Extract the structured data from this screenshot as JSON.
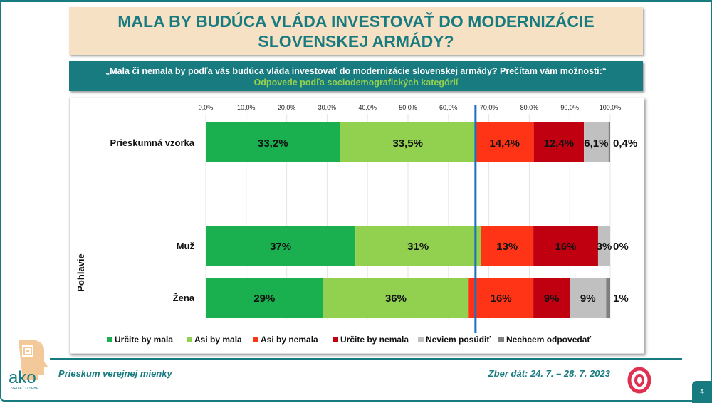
{
  "title": "MALA BY BUDÚCA VLÁDA INVESTOVAŤ DO MODERNIZÁCIE SLOVENSKEJ ARMÁDY?",
  "question": "„Mala či nemala by podľa vás budúca vláda investovať do modernizácie slovenskej armády? Prečítam vám možnosti:“",
  "subtitle": "Odpovede podľa sociodemografických kategórií",
  "footer": {
    "left": "Prieskum verejnej mienky",
    "right": "Zber dát: 24. 7. – 28. 7. 2023",
    "page": "4",
    "logo_text": "ako",
    "logo_tagline": "VEDIEŤ O SEBE"
  },
  "chart_data": {
    "type": "bar",
    "orientation": "horizontal-stacked",
    "xlim": [
      0,
      100
    ],
    "ticks": [
      "0,0%",
      "10,0%",
      "20,0%",
      "30,0%",
      "40,0%",
      "50,0%",
      "60,0%",
      "70,0%",
      "80,0%",
      "90,0%",
      "100,0%"
    ],
    "tick_position": "top",
    "grid": true,
    "reference_line": {
      "value": 66.7,
      "color": "#1f6fbf"
    },
    "group_label": "Pohlavie",
    "categories": [
      "Prieskumná vzorka",
      "Muž",
      "Žena"
    ],
    "series": [
      {
        "name": "Určite by mala",
        "color": "#1aaf4f",
        "values": [
          33.2,
          37,
          29
        ],
        "labels": [
          "33,2%",
          "37%",
          "29%"
        ]
      },
      {
        "name": "Asi by mala",
        "color": "#92d050",
        "values": [
          33.5,
          31,
          36
        ],
        "labels": [
          "33,5%",
          "31%",
          "36%"
        ]
      },
      {
        "name": "Asi by nemala",
        "color": "#ff3315",
        "values": [
          14.4,
          13,
          16
        ],
        "labels": [
          "14,4%",
          "13%",
          "16%"
        ]
      },
      {
        "name": "Určite by nemala",
        "color": "#c00010",
        "values": [
          12.4,
          16,
          9
        ],
        "labels": [
          "12,4%",
          "16%",
          "9%"
        ]
      },
      {
        "name": "Neviem posúdiť",
        "color": "#c0c0c0",
        "values": [
          6.1,
          3,
          9
        ],
        "labels": [
          "6,1%",
          "3%",
          "9%"
        ]
      },
      {
        "name": "Nechcem odpovedať",
        "color": "#7f7f7f",
        "values": [
          0.4,
          0,
          1
        ],
        "labels": [
          "0,4%",
          "0%",
          "1%"
        ]
      }
    ],
    "legend": "bottom"
  }
}
